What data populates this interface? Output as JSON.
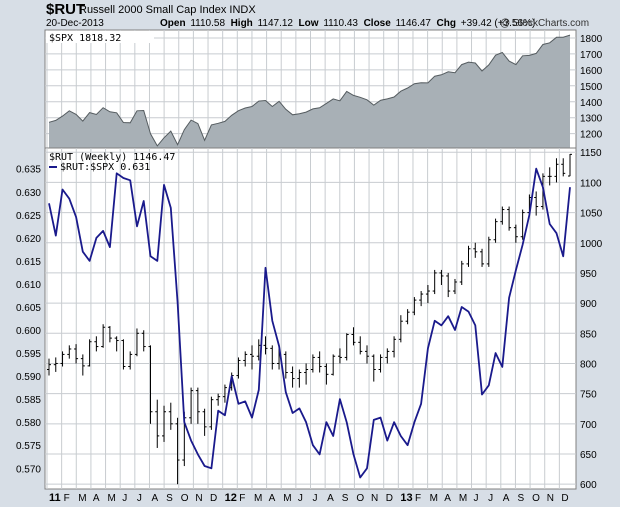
{
  "header": {
    "symbol": "$RUT",
    "name": "Russell 2000 Small Cap Index  INDX",
    "date": "20-Dec-2013",
    "open_label": "Open",
    "open": "1110.58",
    "high_label": "High",
    "high": "1147.12",
    "low_label": "Low",
    "low": "1110.43",
    "close_label": "Close",
    "close": "1146.47",
    "chg_label": "Chg",
    "chg": "+39.42 (+3.56%)",
    "watermark": "@ StockCharts.com"
  },
  "colors": {
    "spx_fill": "#a8b0b6",
    "spx_line": "#555c60",
    "ratio_line": "#1a1a8c",
    "bars": "#000000",
    "background": "#d7dee6"
  },
  "chart_data": [
    {
      "type": "area",
      "legend": "$SPX 1818.32",
      "legend_position": "top-left",
      "grid": true,
      "y_axis_side": "right",
      "yticks": [
        1200,
        1300,
        1400,
        1500,
        1600,
        1700,
        1800
      ],
      "ylim": [
        1110,
        1850
      ],
      "x": [
        "2011-01-07",
        "2011-01-21",
        "2011-02-04",
        "2011-02-18",
        "2011-03-04",
        "2011-03-18",
        "2011-04-01",
        "2011-04-15",
        "2011-04-29",
        "2011-05-13",
        "2011-05-27",
        "2011-06-10",
        "2011-06-24",
        "2011-07-08",
        "2011-07-22",
        "2011-08-05",
        "2011-08-19",
        "2011-09-02",
        "2011-09-16",
        "2011-09-30",
        "2011-10-14",
        "2011-10-28",
        "2011-11-11",
        "2011-11-25",
        "2011-12-09",
        "2011-12-23",
        "2012-01-06",
        "2012-01-20",
        "2012-02-03",
        "2012-02-17",
        "2012-03-02",
        "2012-03-16",
        "2012-03-30",
        "2012-04-13",
        "2012-04-27",
        "2012-05-11",
        "2012-05-25",
        "2012-06-08",
        "2012-06-22",
        "2012-07-06",
        "2012-07-20",
        "2012-08-03",
        "2012-08-17",
        "2012-08-31",
        "2012-09-14",
        "2012-09-28",
        "2012-10-12",
        "2012-10-26",
        "2012-11-09",
        "2012-11-23",
        "2012-12-07",
        "2012-12-21",
        "2013-01-04",
        "2013-01-18",
        "2013-02-01",
        "2013-02-15",
        "2013-03-01",
        "2013-03-15",
        "2013-03-29",
        "2013-04-12",
        "2013-04-26",
        "2013-05-10",
        "2013-05-24",
        "2013-06-07",
        "2013-06-21",
        "2013-07-05",
        "2013-07-19",
        "2013-08-02",
        "2013-08-16",
        "2013-08-30",
        "2013-09-13",
        "2013-09-27",
        "2013-10-11",
        "2013-10-25",
        "2013-11-08",
        "2013-11-22",
        "2013-12-06",
        "2013-12-20"
      ],
      "values": [
        1271,
        1283,
        1310,
        1343,
        1321,
        1279,
        1332,
        1320,
        1363,
        1337,
        1331,
        1270,
        1268,
        1343,
        1345,
        1199,
        1123,
        1174,
        1216,
        1131,
        1225,
        1285,
        1263,
        1158,
        1255,
        1265,
        1277,
        1315,
        1344,
        1361,
        1370,
        1404,
        1408,
        1370,
        1403,
        1353,
        1318,
        1325,
        1335,
        1355,
        1362,
        1390,
        1418,
        1406,
        1465,
        1440,
        1428,
        1412,
        1379,
        1409,
        1418,
        1430,
        1466,
        1486,
        1513,
        1519,
        1518,
        1560,
        1569,
        1588,
        1582,
        1633,
        1649,
        1643,
        1593,
        1631,
        1692,
        1709,
        1655,
        1633,
        1688,
        1691,
        1703,
        1759,
        1770,
        1804,
        1805,
        1818
      ]
    },
    {
      "type": "line",
      "legend": [
        "$RUT (Weekly) 1146.47",
        "$RUT:$SPX 0.631"
      ],
      "legend_position": "top-left",
      "grid": true,
      "xlabels": [
        "11",
        "F",
        "M",
        "A",
        "M",
        "J",
        "J",
        "A",
        "S",
        "O",
        "N",
        "D",
        "12",
        "F",
        "M",
        "A",
        "M",
        "J",
        "J",
        "A",
        "S",
        "O",
        "N",
        "D",
        "13",
        "F",
        "M",
        "A",
        "M",
        "J",
        "J",
        "A",
        "S",
        "O",
        "N",
        "D"
      ],
      "left_axis": {
        "ticks": [
          0.57,
          0.575,
          0.58,
          0.585,
          0.59,
          0.595,
          0.6,
          0.605,
          0.61,
          0.615,
          0.62,
          0.625,
          0.63,
          0.635
        ],
        "range": [
          0.5655,
          0.6395
        ]
      },
      "right_axis": {
        "ticks": [
          600,
          650,
          700,
          750,
          800,
          850,
          900,
          950,
          1000,
          1050,
          1100,
          1150
        ],
        "range": [
          592,
          1157
        ]
      },
      "series": [
        {
          "name": "$RUT (Weekly)",
          "type": "ohlc",
          "axis": "right",
          "values": [
            [
              790,
              808,
              780,
              798
            ],
            [
              798,
              810,
              786,
              800
            ],
            [
              800,
              820,
              795,
              815
            ],
            [
              815,
              830,
              808,
              824
            ],
            [
              824,
              832,
              800,
              808
            ],
            [
              808,
              815,
              780,
              796
            ],
            [
              796,
              840,
              795,
              836
            ],
            [
              836,
              845,
              820,
              828
            ],
            [
              828,
              865,
              826,
              860
            ],
            [
              860,
              862,
              835,
              842
            ],
            [
              842,
              845,
              820,
              838
            ],
            [
              838,
              840,
              790,
              795
            ],
            [
              795,
              820,
              790,
              815
            ],
            [
              815,
              858,
              812,
              850
            ],
            [
              850,
              855,
              820,
              828
            ],
            [
              828,
              830,
              700,
              720
            ],
            [
              720,
              740,
              660,
              680
            ],
            [
              680,
              730,
              670,
              720
            ],
            [
              720,
              735,
              690,
              700
            ],
            [
              700,
              710,
              600,
              640
            ],
            [
              640,
              720,
              630,
              710
            ],
            [
              710,
              760,
              700,
              755
            ],
            [
              755,
              760,
              700,
              720
            ],
            [
              720,
              725,
              680,
              695
            ],
            [
              695,
              745,
              690,
              740
            ],
            [
              740,
              750,
              730,
              745
            ],
            [
              745,
              765,
              735,
              760
            ],
            [
              760,
              785,
              755,
              780
            ],
            [
              780,
              810,
              775,
              805
            ],
            [
              805,
              820,
              795,
              815
            ],
            [
              815,
              830,
              790,
              812
            ],
            [
              812,
              840,
              805,
              830
            ],
            [
              830,
              845,
              815,
              825
            ],
            [
              825,
              830,
              790,
              800
            ],
            [
              800,
              825,
              790,
              815
            ],
            [
              815,
              820,
              775,
              785
            ],
            [
              785,
              795,
              760,
              775
            ],
            [
              775,
              790,
              760,
              785
            ],
            [
              785,
              800,
              765,
              790
            ],
            [
              790,
              815,
              785,
              810
            ],
            [
              810,
              820,
              785,
              795
            ],
            [
              795,
              800,
              765,
              782
            ],
            [
              782,
              815,
              780,
              812
            ],
            [
              812,
              825,
              800,
              810
            ],
            [
              810,
              850,
              805,
              848
            ],
            [
              848,
              860,
              830,
              835
            ],
            [
              835,
              845,
              815,
              820
            ],
            [
              820,
              830,
              800,
              812
            ],
            [
              812,
              815,
              770,
              790
            ],
            [
              790,
              815,
              785,
              810
            ],
            [
              810,
              825,
              800,
              820
            ],
            [
              820,
              845,
              810,
              840
            ],
            [
              840,
              880,
              835,
              870
            ],
            [
              870,
              890,
              865,
              885
            ],
            [
              885,
              910,
              880,
              905
            ],
            [
              905,
              920,
              895,
              915
            ],
            [
              915,
              930,
              900,
              920
            ],
            [
              920,
              955,
              915,
              950
            ],
            [
              950,
              955,
              930,
              945
            ],
            [
              945,
              950,
              910,
              920
            ],
            [
              920,
              940,
              915,
              935
            ],
            [
              935,
              970,
              930,
              965
            ],
            [
              965,
              995,
              960,
              990
            ],
            [
              990,
              1000,
              975,
              985
            ],
            [
              985,
              990,
              960,
              965
            ],
            [
              965,
              1010,
              960,
              1005
            ],
            [
              1005,
              1040,
              1000,
              1035
            ],
            [
              1035,
              1060,
              1030,
              1055
            ],
            [
              1055,
              1060,
              1020,
              1025
            ],
            [
              1025,
              1030,
              1000,
              1010
            ],
            [
              1010,
              1055,
              1005,
              1050
            ],
            [
              1050,
              1080,
              1045,
              1075
            ],
            [
              1075,
              1085,
              1045,
              1060
            ],
            [
              1060,
              1115,
              1055,
              1110
            ],
            [
              1110,
              1125,
              1095,
              1110
            ],
            [
              1110,
              1140,
              1100,
              1130
            ],
            [
              1130,
              1140,
              1110,
              1115
            ],
            [
              1110.58,
              1147.12,
              1110.43,
              1146.47
            ]
          ]
        },
        {
          "name": "$RUT:$SPX",
          "type": "line",
          "axis": "left",
          "values": [
            0.6275,
            0.6205,
            0.6305,
            0.6285,
            0.6245,
            0.617,
            0.615,
            0.62,
            0.6215,
            0.618,
            0.634,
            0.633,
            0.6325,
            0.6225,
            0.628,
            0.616,
            0.615,
            0.6315,
            0.6265,
            0.606,
            0.58,
            0.576,
            0.573,
            0.5705,
            0.57,
            0.5825,
            0.5815,
            0.59,
            0.584,
            0.5845,
            0.581,
            0.587,
            0.6135,
            0.602,
            0.5965,
            0.5865,
            0.582,
            0.583,
            0.58,
            0.575,
            0.573,
            0.58,
            0.577,
            0.585,
            0.58,
            0.573,
            0.568,
            0.57,
            0.5805,
            0.581,
            0.576,
            0.58,
            0.577,
            0.575,
            0.58,
            0.584,
            0.596,
            0.602,
            0.601,
            0.603,
            0.6,
            0.605,
            0.604,
            0.601,
            0.586,
            0.588,
            0.595,
            0.592,
            0.607,
            0.613,
            0.6185,
            0.625,
            0.635,
            0.631,
            0.623,
            0.621,
            0.616,
            0.631
          ]
        }
      ]
    }
  ]
}
